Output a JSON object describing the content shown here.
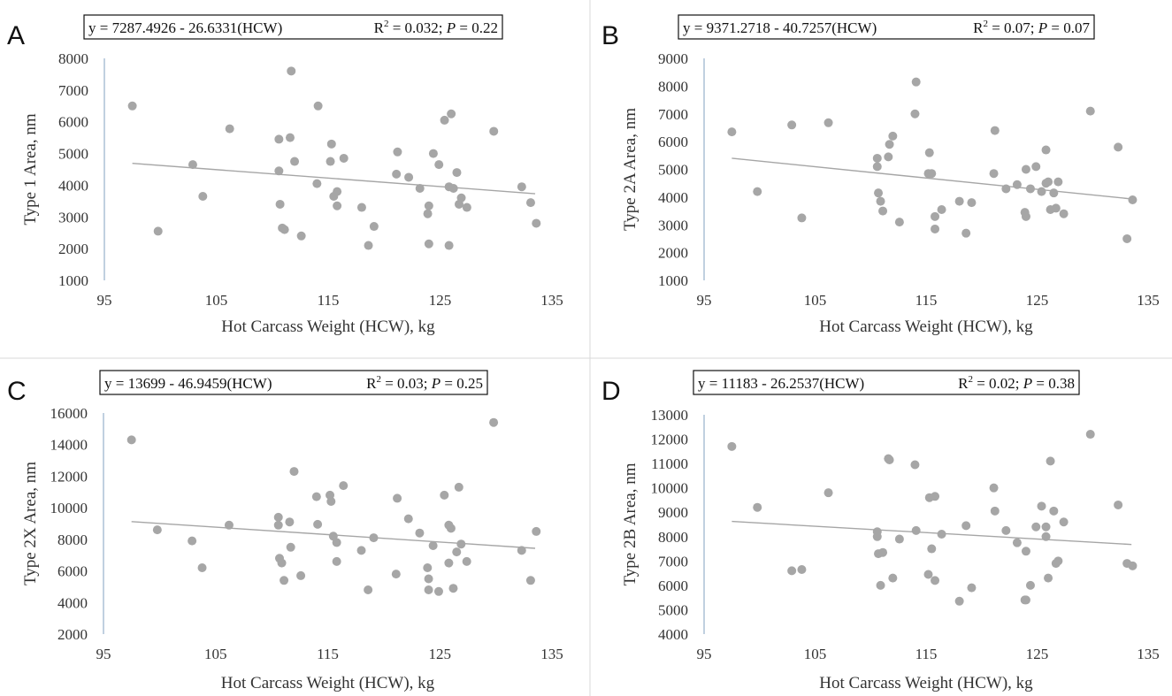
{
  "chart_data": [
    {
      "panel": "A",
      "type": "scatter",
      "equation": "y = 7287.4926 - 26.6331(HCW)",
      "r2_label": "R",
      "r2_sup": "2",
      "r2_value": " = 0.032; ",
      "p_label": "P",
      "p_value": " = 0.22",
      "xlabel": "Hot Carcass Weight (HCW), kg",
      "ylabel": "Type 1 Area, nm",
      "xlim": [
        95,
        135
      ],
      "ylim": [
        1000,
        8000
      ],
      "xticks": [
        95,
        105,
        115,
        125,
        135
      ],
      "yticks": [
        1000,
        2000,
        3000,
        4000,
        5000,
        6000,
        7000,
        8000
      ],
      "trend": {
        "intercept": 7287.4926,
        "slope": -26.6331,
        "x_range": [
          97.5,
          133.5
        ]
      },
      "x": [
        97.5,
        99.8,
        102.9,
        103.8,
        106.2,
        110.6,
        110.6,
        110.7,
        110.9,
        111.1,
        111.6,
        111.7,
        112.0,
        112.6,
        114.0,
        114.1,
        115.2,
        115.3,
        115.5,
        115.8,
        115.8,
        116.4,
        118.0,
        118.6,
        119.1,
        121.1,
        121.2,
        122.2,
        123.2,
        123.9,
        124.0,
        124.0,
        124.4,
        124.9,
        125.4,
        125.8,
        125.8,
        126.0,
        126.2,
        126.5,
        126.7,
        126.9,
        127.4,
        129.8,
        132.3,
        133.1,
        133.6
      ],
      "y": [
        6500,
        2550,
        4650,
        3650,
        5780,
        5450,
        4450,
        3400,
        2650,
        2600,
        5500,
        7600,
        4750,
        2400,
        4050,
        6500,
        4750,
        5300,
        3650,
        3350,
        3800,
        4850,
        3300,
        2100,
        2700,
        4350,
        5050,
        4250,
        3900,
        3100,
        3350,
        2150,
        5000,
        4650,
        6050,
        3950,
        2100,
        6250,
        3900,
        4400,
        3400,
        3600,
        3300,
        5700,
        3950,
        3450,
        2800
      ]
    },
    {
      "panel": "B",
      "type": "scatter",
      "equation": "y = 9371.2718 - 40.7257(HCW)",
      "r2_label": "R",
      "r2_sup": "2",
      "r2_value": " = 0.07; ",
      "p_label": "P",
      "p_value": " = 0.07",
      "xlabel": "Hot Carcass Weight (HCW), kg",
      "ylabel": "Type 2A Area, nm",
      "xlim": [
        95,
        135
      ],
      "ylim": [
        1000,
        9000
      ],
      "xticks": [
        95,
        105,
        115,
        125,
        135
      ],
      "yticks": [
        1000,
        2000,
        3000,
        4000,
        5000,
        6000,
        7000,
        8000,
        9000
      ],
      "trend": {
        "intercept": 9371.2718,
        "slope": -40.7257,
        "x_range": [
          97.5,
          133.5
        ]
      },
      "x": [
        97.5,
        99.8,
        102.9,
        103.8,
        106.2,
        110.6,
        110.6,
        110.7,
        110.9,
        111.1,
        111.6,
        111.7,
        112.0,
        112.6,
        114.0,
        114.1,
        115.2,
        115.3,
        115.5,
        115.8,
        115.8,
        116.4,
        118.0,
        118.6,
        119.1,
        121.1,
        121.2,
        122.2,
        123.2,
        123.9,
        124.0,
        124.0,
        124.4,
        124.9,
        125.4,
        125.8,
        125.8,
        126.0,
        126.2,
        126.5,
        126.7,
        126.9,
        127.4,
        129.8,
        132.3,
        133.1,
        133.6
      ],
      "y": [
        6350,
        4200,
        6600,
        3250,
        6680,
        5400,
        5100,
        4150,
        3850,
        3500,
        5450,
        5900,
        6200,
        3100,
        7000,
        8150,
        4850,
        5600,
        4850,
        2850,
        3300,
        3550,
        3850,
        2700,
        3800,
        4850,
        6400,
        4300,
        4450,
        3450,
        5000,
        3300,
        4300,
        5100,
        4200,
        5700,
        4500,
        4550,
        3550,
        4150,
        3600,
        4550,
        3400,
        7100,
        5800,
        2500,
        3900
      ]
    },
    {
      "panel": "C",
      "type": "scatter",
      "equation": "y = 13699 - 46.9459(HCW)",
      "r2_label": "R",
      "r2_sup": "2",
      "r2_value": " = 0.03; ",
      "p_label": "P",
      "p_value": " = 0.25",
      "xlabel": "Hot Carcass Weight (HCW), kg",
      "ylabel": "Type 2X Area, nm",
      "xlim": [
        95,
        135
      ],
      "ylim": [
        2000,
        16000
      ],
      "xticks": [
        95,
        105,
        115,
        125,
        135
      ],
      "yticks": [
        2000,
        4000,
        6000,
        8000,
        10000,
        12000,
        14000,
        16000
      ],
      "trend": {
        "intercept": 13699,
        "slope": -46.9459,
        "x_range": [
          97.5,
          133.5
        ]
      },
      "x": [
        97.5,
        99.8,
        102.9,
        103.8,
        106.2,
        110.6,
        110.6,
        110.7,
        110.9,
        111.1,
        111.6,
        111.7,
        112.0,
        112.6,
        114.0,
        114.1,
        115.2,
        115.3,
        115.5,
        115.8,
        115.8,
        116.4,
        118.0,
        118.6,
        119.1,
        121.1,
        121.2,
        122.2,
        123.2,
        123.9,
        124.0,
        124.0,
        124.4,
        124.9,
        125.4,
        125.8,
        125.8,
        126.0,
        126.2,
        126.5,
        126.7,
        126.9,
        127.4,
        129.8,
        132.3,
        133.1,
        133.6
      ],
      "y": [
        14300,
        8600,
        7900,
        6200,
        8900,
        9400,
        8900,
        6800,
        6500,
        5400,
        9100,
        7500,
        12300,
        5700,
        10700,
        8950,
        10800,
        10400,
        8200,
        7800,
        6600,
        11400,
        7300,
        4800,
        8100,
        5800,
        10600,
        9300,
        8400,
        6200,
        5500,
        4800,
        7600,
        4700,
        10800,
        8900,
        6500,
        8700,
        4900,
        7200,
        11300,
        7700,
        6600,
        15400,
        7300,
        5400,
        8500
      ]
    },
    {
      "panel": "D",
      "type": "scatter",
      "equation": "y = 11183 - 26.2537(HCW)",
      "r2_label": "R",
      "r2_sup": "2",
      "r2_value": " = 0.02; ",
      "p_label": "P",
      "p_value": " = 0.38",
      "xlabel": "Hot Carcass Weight (HCW), kg",
      "ylabel": "Type 2B Area, nm",
      "xlim": [
        95,
        135
      ],
      "ylim": [
        4000,
        13000
      ],
      "xticks": [
        95,
        105,
        115,
        125,
        135
      ],
      "yticks": [
        4000,
        5000,
        6000,
        7000,
        8000,
        9000,
        10000,
        11000,
        12000,
        13000
      ],
      "trend": {
        "intercept": 11183,
        "slope": -26.2537,
        "x_range": [
          97.5,
          133.5
        ]
      },
      "x": [
        97.5,
        99.8,
        102.9,
        103.8,
        106.2,
        110.6,
        110.6,
        110.7,
        110.9,
        111.1,
        111.6,
        111.7,
        112.0,
        112.6,
        114.0,
        114.1,
        115.2,
        115.3,
        115.5,
        115.8,
        115.8,
        116.4,
        118.0,
        118.6,
        119.1,
        121.1,
        121.2,
        122.2,
        123.2,
        123.9,
        124.0,
        124.0,
        124.4,
        124.9,
        125.4,
        125.8,
        125.8,
        126.0,
        126.2,
        126.5,
        126.7,
        126.9,
        127.4,
        129.8,
        132.3,
        133.1,
        133.6
      ],
      "y": [
        11700,
        9200,
        6600,
        6650,
        9800,
        8200,
        8000,
        7300,
        6000,
        7350,
        11200,
        11150,
        6300,
        7900,
        10950,
        8250,
        6450,
        9600,
        7500,
        9650,
        6200,
        8100,
        5350,
        8450,
        5900,
        10000,
        9050,
        8250,
        7750,
        5400,
        7400,
        5400,
        6000,
        8400,
        9250,
        8000,
        8400,
        6300,
        11100,
        9050,
        6900,
        7000,
        8600,
        12200,
        9300,
        6900,
        6800
      ]
    }
  ]
}
